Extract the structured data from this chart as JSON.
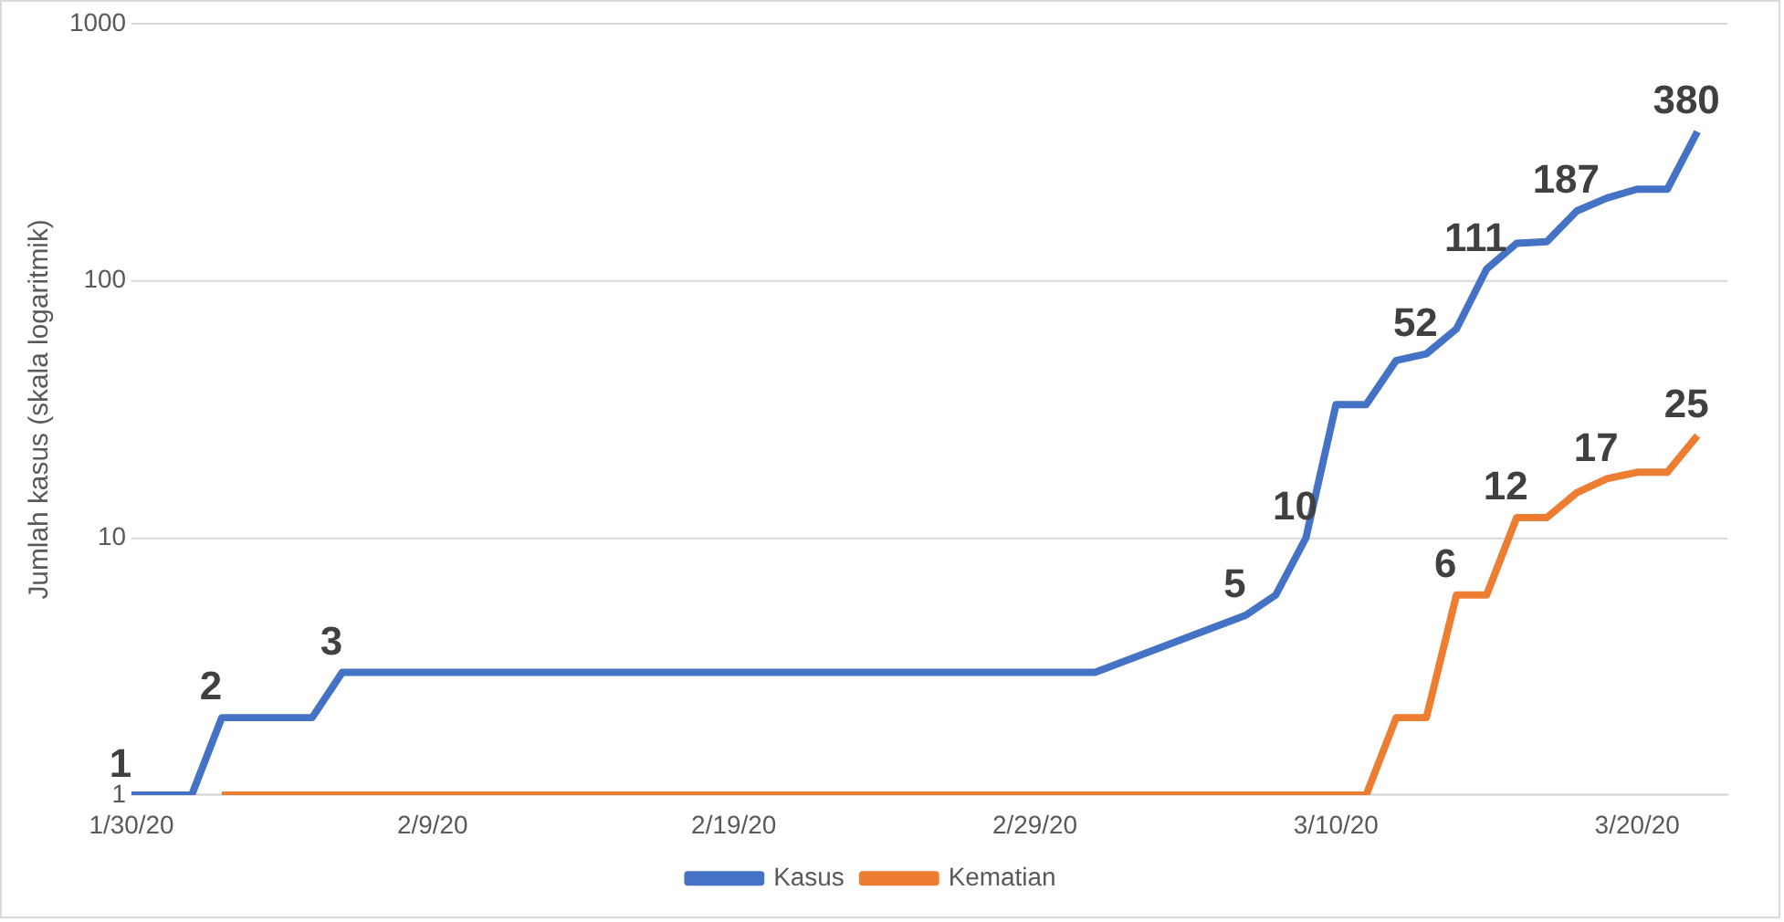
{
  "chart_data": {
    "type": "line",
    "ylabel": "Jumlah kasus (skala logaritmik)",
    "series": [
      {
        "name": "Kasus",
        "color": "#4472c4",
        "x": [
          "--01-30",
          "--01-31",
          "--02-01",
          "--02-02",
          "--02-03",
          "--02-04",
          "--02-05",
          "--02-06",
          "--02-07",
          "--02-08",
          "--02-09",
          "--02-10",
          "--02-11",
          "--02-12",
          "--02-13",
          "--02-14",
          "--02-15",
          "--02-16",
          "--02-17",
          "--02-18",
          "--02-19",
          "--02-20",
          "--02-21",
          "--02-22",
          "--02-23",
          "--02-24",
          "--02-25",
          "--02-26",
          "--02-27",
          "--02-28",
          "--02-29",
          "--03-01",
          "--03-02",
          "--03-07",
          "--03-08",
          "--03-09",
          "--03-10",
          "--03-11",
          "--03-12",
          "--03-13",
          "--03-14",
          "--03-15",
          "--03-16",
          "--03-17",
          "--03-18",
          "--03-19",
          "--03-20",
          "--03-21",
          "--03-22"
        ],
        "values": [
          1,
          1,
          1,
          2,
          2,
          2,
          2,
          3,
          3,
          3,
          3,
          3,
          3,
          3,
          3,
          3,
          3,
          3,
          3,
          3,
          3,
          3,
          3,
          3,
          3,
          3,
          3,
          3,
          3,
          3,
          3,
          3,
          3,
          5,
          6,
          10,
          33,
          33,
          49,
          52,
          65,
          111,
          140,
          142,
          187,
          210,
          227,
          227,
          380
        ],
        "value_labels": [
          "1",
          null,
          null,
          "2",
          null,
          null,
          null,
          "3",
          null,
          null,
          null,
          null,
          null,
          null,
          null,
          null,
          null,
          null,
          null,
          null,
          null,
          null,
          null,
          null,
          null,
          null,
          null,
          null,
          null,
          null,
          null,
          null,
          null,
          "5",
          null,
          "10",
          null,
          null,
          null,
          "52",
          null,
          "111",
          null,
          null,
          "187",
          null,
          null,
          null,
          "380"
        ]
      },
      {
        "name": "Kematian",
        "color": "#ed7d31",
        "x": [
          "--02-02",
          "--03-11",
          "--03-12",
          "--03-13",
          "--03-14",
          "--03-15",
          "--03-16",
          "--03-17",
          "--03-18",
          "--03-19",
          "--03-20",
          "--03-21",
          "--03-22"
        ],
        "values": [
          1,
          1,
          2,
          2,
          6,
          6,
          12,
          12,
          15,
          17,
          18,
          18,
          25
        ],
        "value_labels": [
          null,
          null,
          null,
          null,
          "6",
          null,
          "12",
          null,
          null,
          "17",
          null,
          null,
          "25"
        ]
      }
    ],
    "xlim": [
      "--01-30",
      "--03-23"
    ],
    "xticks": [
      {
        "value": "--01-30",
        "label": "1/30/20"
      },
      {
        "value": "--02-09",
        "label": "2/9/20"
      },
      {
        "value": "--02-19",
        "label": "2/19/20"
      },
      {
        "value": "--02-29",
        "label": "2/29/20"
      },
      {
        "value": "--03-10",
        "label": "3/10/20"
      },
      {
        "value": "--03-20",
        "label": "3/20/20"
      }
    ],
    "ylim": [
      1,
      1000
    ],
    "yticks": [
      1,
      10,
      100,
      1000
    ],
    "log": true,
    "grid": "y",
    "legend": "bottom"
  }
}
